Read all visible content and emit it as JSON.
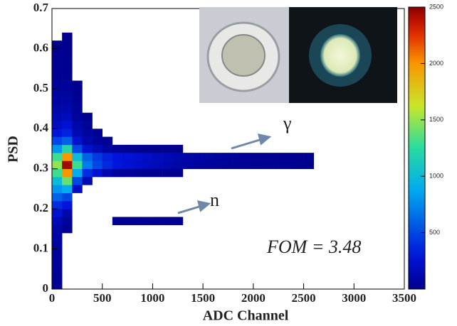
{
  "chart_data": {
    "type": "heatmap",
    "x_label": "ADC Channel",
    "y_label": "PSD",
    "xlim": [
      0,
      3500
    ],
    "xticks": [
      0,
      500,
      1000,
      1500,
      2000,
      2500,
      3000,
      3500
    ],
    "ylim": [
      0,
      0.7
    ],
    "yticks": [
      0,
      0.1,
      0.2,
      0.3,
      0.4,
      0.5,
      0.6,
      0.7
    ],
    "zlim": [
      0,
      2500
    ],
    "zticks": [
      500,
      1000,
      1500,
      2000,
      2500
    ],
    "colormap": "jet",
    "x_bin_width": 100,
    "y_bin_width": 0.02,
    "annotations": [
      "γ",
      "n",
      "FOM = 3.48"
    ],
    "x": [
      0,
      0,
      0,
      0,
      0,
      0,
      0,
      0,
      0,
      0,
      0,
      0,
      0,
      0,
      0,
      0,
      0,
      0,
      0,
      0,
      0,
      0,
      0,
      0,
      0,
      0,
      0,
      0,
      0,
      0,
      0,
      100,
      100,
      100,
      100,
      100,
      100,
      100,
      100,
      100,
      100,
      100,
      100,
      100,
      100,
      100,
      100,
      100,
      100,
      100,
      100,
      100,
      100,
      100,
      100,
      100,
      200,
      200,
      200,
      200,
      200,
      200,
      200,
      200,
      200,
      200,
      200,
      200,
      200,
      200,
      300,
      300,
      300,
      300,
      300,
      300,
      300,
      300,
      300,
      400,
      400,
      400,
      400,
      400,
      400,
      500,
      500,
      500,
      500,
      500,
      600,
      600,
      600,
      600,
      700,
      700,
      700,
      700,
      800,
      800,
      800,
      800,
      900,
      900,
      900,
      900,
      1000,
      1000,
      1000,
      1000,
      1100,
      1100,
      1100,
      1100,
      1200,
      1200,
      1200,
      1200,
      1300,
      1300,
      1400,
      1400,
      1500,
      1500,
      1600,
      1600,
      1700,
      1700,
      1800,
      1800,
      1900,
      1900,
      2000,
      2000,
      2100,
      2100,
      2200,
      2200,
      2300,
      2300,
      2400,
      2400,
      2500,
      2500,
      600,
      700,
      800,
      900,
      1000,
      1100,
      1200
    ],
    "y": [
      0,
      0.02,
      0.04,
      0.06,
      0.08,
      0.1,
      0.12,
      0.14,
      0.16,
      0.18,
      0.2,
      0.22,
      0.24,
      0.26,
      0.28,
      0.3,
      0.32,
      0.34,
      0.36,
      0.38,
      0.4,
      0.42,
      0.44,
      0.46,
      0.48,
      0.5,
      0.52,
      0.54,
      0.56,
      0.58,
      0.6,
      0.14,
      0.16,
      0.18,
      0.2,
      0.22,
      0.24,
      0.26,
      0.28,
      0.3,
      0.32,
      0.34,
      0.36,
      0.38,
      0.4,
      0.42,
      0.44,
      0.46,
      0.48,
      0.5,
      0.52,
      0.54,
      0.56,
      0.58,
      0.6,
      0.62,
      0.24,
      0.26,
      0.28,
      0.3,
      0.32,
      0.34,
      0.36,
      0.38,
      0.4,
      0.42,
      0.44,
      0.46,
      0.48,
      0.5,
      0.26,
      0.28,
      0.3,
      0.32,
      0.34,
      0.36,
      0.38,
      0.4,
      0.42,
      0.28,
      0.3,
      0.32,
      0.34,
      0.36,
      0.38,
      0.28,
      0.3,
      0.32,
      0.34,
      0.36,
      0.28,
      0.3,
      0.32,
      0.34,
      0.28,
      0.3,
      0.32,
      0.34,
      0.28,
      0.3,
      0.32,
      0.34,
      0.28,
      0.3,
      0.32,
      0.34,
      0.28,
      0.3,
      0.32,
      0.34,
      0.28,
      0.3,
      0.32,
      0.34,
      0.28,
      0.3,
      0.32,
      0.34,
      0.3,
      0.32,
      0.3,
      0.32,
      0.3,
      0.32,
      0.3,
      0.32,
      0.3,
      0.32,
      0.3,
      0.32,
      0.3,
      0.32,
      0.3,
      0.32,
      0.3,
      0.32,
      0.3,
      0.32,
      0.3,
      0.32,
      0.3,
      0.32,
      0.3,
      0.32,
      0.16,
      0.16,
      0.16,
      0.16,
      0.16,
      0.16,
      0.16
    ],
    "values": [
      30,
      30,
      40,
      40,
      50,
      60,
      80,
      100,
      150,
      250,
      400,
      600,
      800,
      1000,
      1300,
      1500,
      1300,
      800,
      500,
      300,
      200,
      150,
      100,
      80,
      60,
      40,
      30,
      20,
      15,
      10,
      5,
      30,
      50,
      120,
      300,
      500,
      900,
      1400,
      2000,
      2450,
      2000,
      1200,
      600,
      350,
      250,
      180,
      120,
      90,
      60,
      40,
      30,
      20,
      15,
      10,
      8,
      5,
      200,
      500,
      900,
      1300,
      1000,
      500,
      250,
      150,
      100,
      60,
      40,
      25,
      15,
      10,
      150,
      400,
      700,
      600,
      250,
      120,
      70,
      40,
      20,
      250,
      500,
      450,
      150,
      60,
      30,
      120,
      380,
      350,
      80,
      30,
      60,
      300,
      300,
      40,
      40,
      260,
      270,
      30,
      30,
      220,
      240,
      20,
      20,
      190,
      210,
      15,
      15,
      160,
      180,
      10,
      10,
      130,
      150,
      8,
      8,
      100,
      120,
      5,
      80,
      100,
      60,
      85,
      50,
      70,
      40,
      60,
      30,
      50,
      25,
      40,
      20,
      35,
      15,
      30,
      12,
      25,
      10,
      20,
      8,
      15,
      6,
      10,
      5,
      8,
      15,
      20,
      20,
      25,
      20,
      15,
      10
    ]
  }
}
